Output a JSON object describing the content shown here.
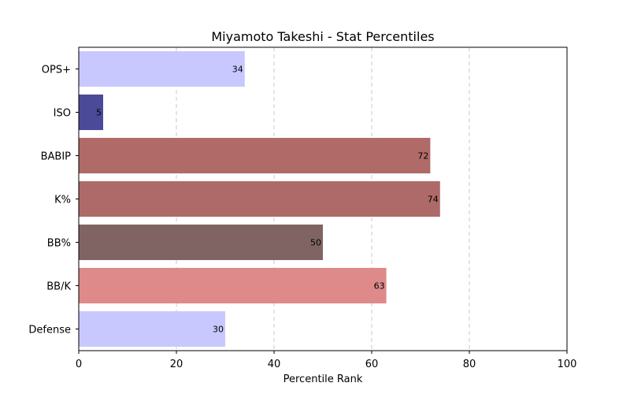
{
  "chart_data": {
    "type": "bar",
    "orientation": "horizontal",
    "title": "Miyamoto Takeshi - Stat Percentiles",
    "xlabel": "Percentile Rank",
    "ylabel": "",
    "xlim": [
      0,
      100
    ],
    "xticks": [
      0,
      20,
      40,
      60,
      80,
      100
    ],
    "grid": "x-dashed",
    "categories": [
      "OPS+",
      "ISO",
      "BABIP",
      "K%",
      "BB%",
      "BB/K",
      "Defense"
    ],
    "values": [
      34,
      5,
      72,
      74,
      50,
      63,
      30
    ],
    "colors": [
      "#c8c8ff",
      "#4a4a98",
      "#b06a68",
      "#ae6a68",
      "#806464",
      "#de8a8a",
      "#c8c8ff"
    ]
  }
}
